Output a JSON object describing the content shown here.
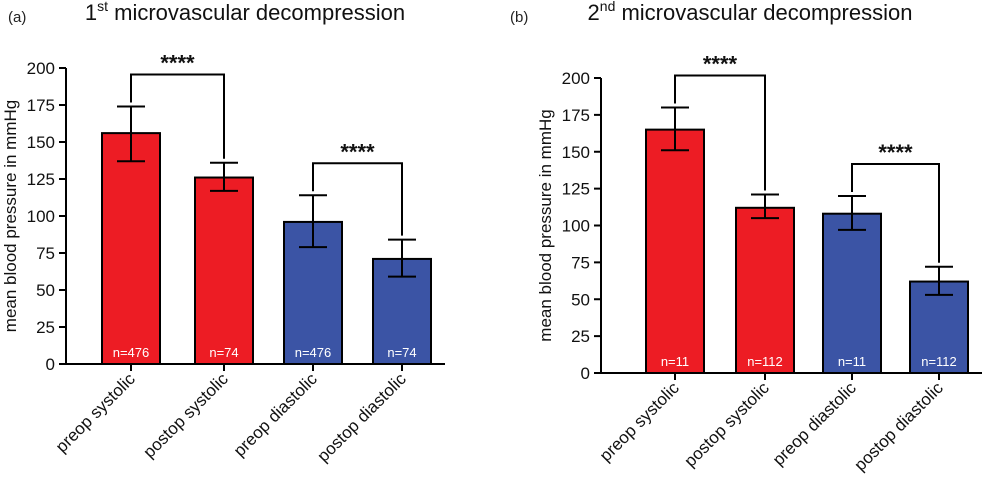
{
  "figure": {
    "panels": [
      "(a)",
      "(b)"
    ]
  },
  "chart_data": [
    {
      "panel_label": "(a)",
      "type": "bar",
      "title": "1st microvascular decompression",
      "title_main": "1",
      "title_sup": "st",
      "title_rest": " microvascular decompression",
      "ylabel": "mean blood pressure in mmHg",
      "xlabel": "",
      "ylim": [
        0,
        200
      ],
      "yticks": [
        0,
        25,
        50,
        75,
        100,
        125,
        150,
        175,
        200
      ],
      "categories": [
        "preop systolic",
        "postop systolic",
        "preop diastolic",
        "postop diastolic"
      ],
      "values": [
        156,
        126,
        96,
        71
      ],
      "error_low": [
        137,
        117,
        79,
        59
      ],
      "error_high": [
        174,
        136,
        114,
        84
      ],
      "n_labels": [
        "n=476",
        "n=74",
        "n=476",
        "n=74"
      ],
      "colors": [
        "#ed1c24",
        "#ed1c24",
        "#3b54a5",
        "#3b54a5"
      ],
      "significance": [
        {
          "from": 0,
          "to": 1,
          "label": "****"
        },
        {
          "from": 2,
          "to": 3,
          "label": "****"
        }
      ]
    },
    {
      "panel_label": "(b)",
      "type": "bar",
      "title": "2nd microvascular decompression",
      "title_main": "2",
      "title_sup": "nd",
      "title_rest": " microvascular decompression",
      "ylabel": "mean blood pressure in mmHg",
      "xlabel": "",
      "ylim": [
        0,
        200
      ],
      "yticks": [
        0,
        25,
        50,
        75,
        100,
        125,
        150,
        175,
        200
      ],
      "categories": [
        "preop systolic",
        "postop systolic",
        "preop diastolic",
        "postop diastolic"
      ],
      "values": [
        165,
        112,
        108,
        62
      ],
      "error_low": [
        151,
        105,
        97,
        53
      ],
      "error_high": [
        180,
        121,
        120,
        72
      ],
      "n_labels": [
        "n=11",
        "n=112",
        "n=11",
        "n=112"
      ],
      "colors": [
        "#ed1c24",
        "#ed1c24",
        "#3b54a5",
        "#3b54a5"
      ],
      "significance": [
        {
          "from": 0,
          "to": 1,
          "label": "****"
        },
        {
          "from": 2,
          "to": 3,
          "label": "****"
        }
      ]
    }
  ]
}
